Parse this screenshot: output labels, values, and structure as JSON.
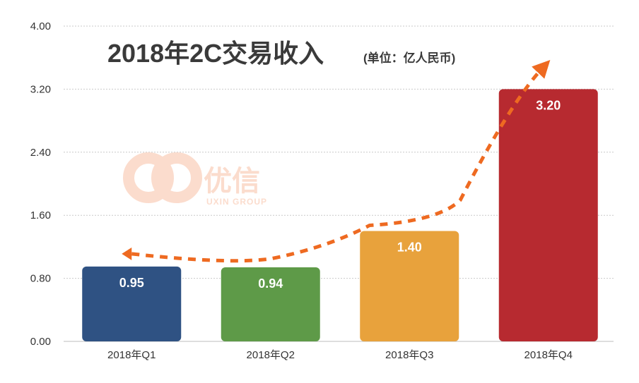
{
  "chart_data": {
    "type": "bar",
    "title": "2018年2C交易收入",
    "subtitle": "(单位：亿人民币)",
    "categories": [
      "2018年Q1",
      "2018年Q2",
      "2018年Q3",
      "2018年Q4"
    ],
    "values": [
      0.95,
      0.94,
      1.4,
      3.2
    ],
    "value_labels": [
      "0.95",
      "0.94",
      "1.40",
      "3.20"
    ],
    "ylim": [
      0,
      4
    ],
    "yticks": [
      "0.00",
      "0.80",
      "1.60",
      "2.40",
      "3.20",
      "4.00"
    ],
    "ytick_values": [
      0,
      0.8,
      1.6,
      2.4,
      3.2,
      4.0
    ],
    "grid": true,
    "colors": [
      "#2f5283",
      "#5e9a48",
      "#e8a23c",
      "#b72a30"
    ],
    "trend_line": {
      "style": "dashed-arrow",
      "color": "#ee6a21"
    }
  },
  "watermark": {
    "text": "优信",
    "sub": "UXIN GROUP",
    "color": "#fbd9c8"
  }
}
